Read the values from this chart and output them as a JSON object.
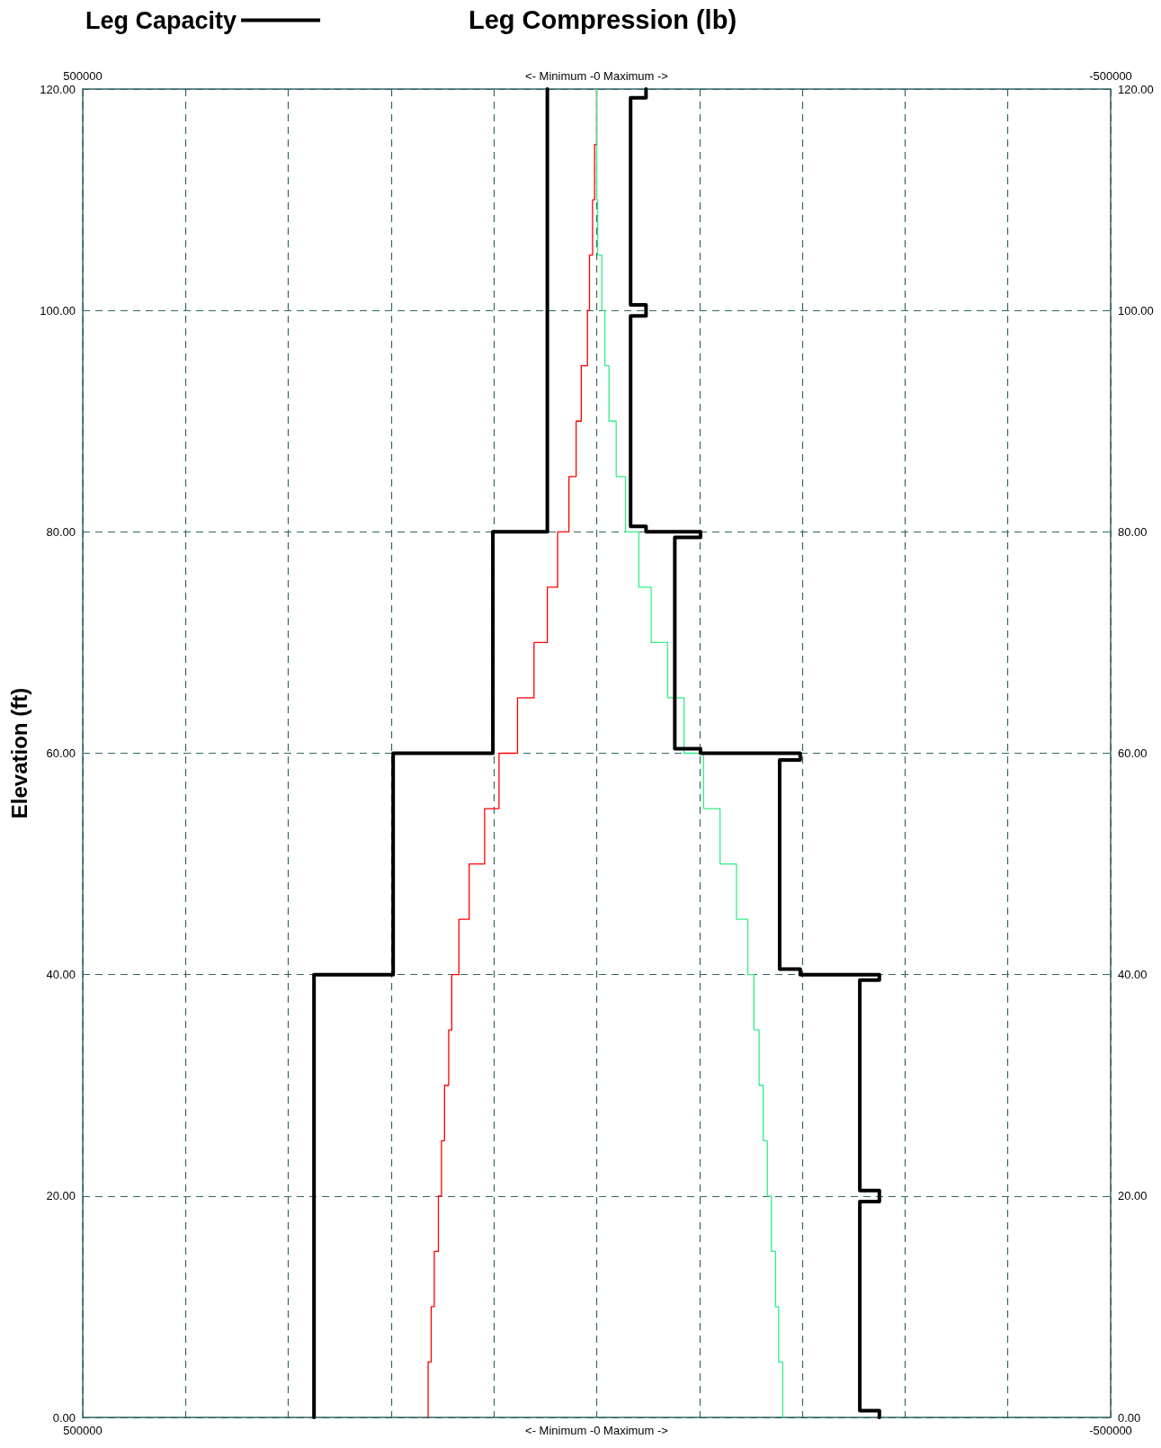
{
  "chart_data": {
    "type": "line",
    "title": "Leg Compression (lb)",
    "ylabel": "Elevation (ft)",
    "series": [
      {
        "name": "Leg Capacity",
        "color": "#000000",
        "x": [
          275000,
          275000,
          198000,
          198000,
          101000,
          101000,
          48000,
          48000
        ],
        "values": [
          0,
          40,
          40,
          60,
          60,
          80,
          80,
          120
        ]
      },
      {
        "color": "#000000",
        "x": [
          -275000,
          -275000,
          -256000,
          -256000,
          -275000,
          -275000,
          -256000,
          -256000,
          -275000,
          -275000,
          -198000,
          -198000,
          -178000,
          -178000,
          -198000,
          -198000,
          -101000,
          -101000,
          -76000,
          -76000,
          -101000,
          -101000,
          -48000,
          -48000,
          -33000,
          -33000,
          -48000,
          -48000,
          -33000,
          -33000,
          -48000,
          -48000
        ],
        "values": [
          0,
          0.6,
          0.6,
          19.5,
          19.5,
          20.5,
          20.5,
          39.5,
          39.5,
          40,
          40,
          40.5,
          40.5,
          59.4,
          59.4,
          60,
          60,
          60.4,
          60.4,
          79.5,
          79.5,
          80,
          80,
          80.5,
          80.5,
          99.5,
          99.5,
          100.5,
          100.5,
          119.2,
          119.2,
          120
        ]
      },
      {
        "color": "#ff0000",
        "x": [
          164000,
          164000,
          161000,
          161000,
          158000,
          158000,
          154000,
          154000,
          151000,
          151000,
          148000,
          148000,
          144000,
          144000,
          141000,
          141000,
          134000,
          134000,
          124000,
          124000,
          109000,
          109000,
          95000,
          95000,
          77000,
          77000,
          61000,
          61000,
          48000,
          48000,
          38000,
          38000,
          27000,
          27000,
          20000,
          20000,
          15000,
          15000,
          9000,
          9000,
          7000,
          7000,
          4000,
          4000,
          2000,
          2000,
          0,
          0
        ],
        "values": [
          0,
          5,
          5,
          10,
          10,
          15,
          15,
          20,
          20,
          25,
          25,
          30,
          30,
          35,
          35,
          40,
          40,
          45,
          45,
          50,
          50,
          55,
          55,
          60,
          60,
          65,
          65,
          70,
          70,
          75,
          75,
          80,
          80,
          85,
          85,
          90,
          90,
          95,
          95,
          100,
          100,
          105,
          105,
          110,
          110,
          115,
          115,
          120
        ]
      },
      {
        "color": "#33ee88",
        "x": [
          -181000,
          -181000,
          -177000,
          -177000,
          -174000,
          -174000,
          -170000,
          -170000,
          -166000,
          -166000,
          -162000,
          -162000,
          -158000,
          -158000,
          -153000,
          -153000,
          -147000,
          -147000,
          -136000,
          -136000,
          -120000,
          -120000,
          -104000,
          -104000,
          -85000,
          -85000,
          -69000,
          -69000,
          -53000,
          -53000,
          -41000,
          -41000,
          -28000,
          -28000,
          -19000,
          -19000,
          -12000,
          -12000,
          -8000,
          -8000,
          -5000,
          -5000,
          -1000,
          -1000,
          0,
          0
        ],
        "values": [
          0,
          5,
          5,
          10,
          10,
          15,
          15,
          20,
          20,
          25,
          25,
          30,
          30,
          35,
          35,
          40,
          40,
          45,
          45,
          50,
          50,
          55,
          55,
          60,
          60,
          65,
          65,
          70,
          70,
          75,
          75,
          80,
          80,
          85,
          85,
          90,
          90,
          95,
          95,
          100,
          100,
          105,
          105,
          110,
          110,
          120
        ]
      }
    ],
    "xlim": [
      500000,
      -500000
    ],
    "xticks": [
      500000,
      {
        "value": 400000,
        "label": null
      },
      {
        "value": 300000,
        "label": null
      },
      {
        "value": 200000,
        "label": null
      },
      {
        "value": 100000,
        "label": null
      },
      {
        "value": 0,
        "label": "<- Minimum -0 Maximum ->"
      },
      {
        "value": -100000,
        "label": null
      },
      {
        "value": -200000,
        "label": null
      },
      {
        "value": -300000,
        "label": null
      },
      {
        "value": -400000,
        "label": null
      },
      -500000
    ],
    "x2lim": [
      500000,
      -500000
    ],
    "x2ticks": [
      500000,
      {
        "value": 400000,
        "label": null
      },
      {
        "value": 300000,
        "label": null
      },
      {
        "value": 200000,
        "label": null
      },
      {
        "value": 100000,
        "label": null
      },
      {
        "value": 0,
        "label": "<- Minimum -0 Maximum ->"
      },
      {
        "value": -100000,
        "label": null
      },
      {
        "value": -200000,
        "label": null
      },
      {
        "value": -300000,
        "label": null
      },
      {
        "value": -400000,
        "label": null
      },
      -500000
    ],
    "ylim": [
      0,
      120
    ],
    "yticks": [
      {
        "value": 0,
        "label": "0.00"
      },
      {
        "value": 20,
        "label": "20.00"
      },
      {
        "value": 40,
        "label": "40.00"
      },
      {
        "value": 60,
        "label": "60.00"
      },
      {
        "value": 80,
        "label": "80.00"
      },
      {
        "value": 100,
        "label": "100.00"
      },
      {
        "value": 120,
        "label": "120.00"
      }
    ],
    "y2lim": [
      0,
      120
    ],
    "y2ticks": [
      {
        "value": 0,
        "label": "0.00"
      },
      {
        "value": 20,
        "label": "20.00"
      },
      {
        "value": 40,
        "label": "40.00"
      },
      {
        "value": 60,
        "label": "60.00"
      },
      {
        "value": 80,
        "label": "80.00"
      },
      {
        "value": 100,
        "label": "100.00"
      },
      {
        "value": 120,
        "label": "120.00"
      }
    ],
    "grid": true,
    "legend": "top left",
    "marker": "none",
    "line_style": "solid"
  }
}
